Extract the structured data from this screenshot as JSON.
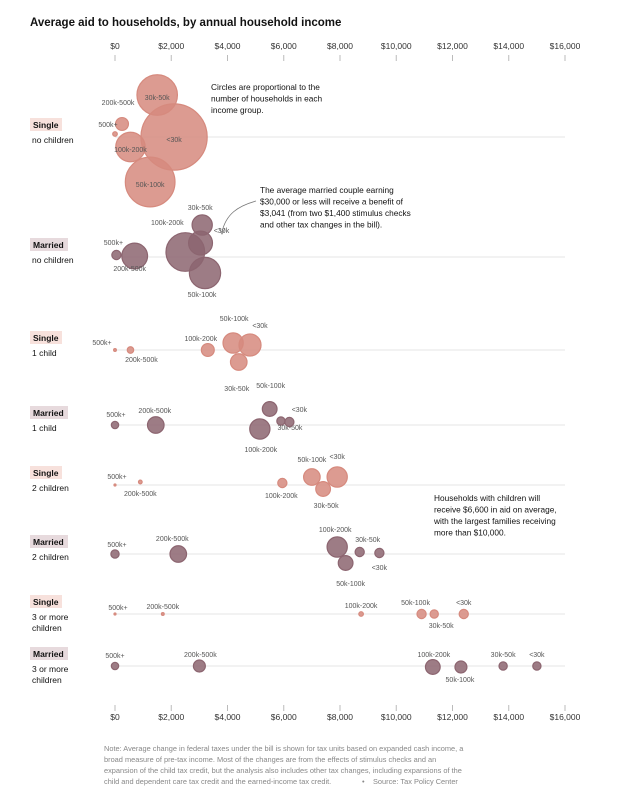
{
  "title": "Average aid to households, by annual household income",
  "x_ticks": [
    "$0",
    "$2,000",
    "$4,000",
    "$6,000",
    "$8,000",
    "$10,000",
    "$12,000",
    "$14,000",
    "$16,000"
  ],
  "annotations": [
    [
      "Circles are proportional to the",
      "number of households in each",
      "income group."
    ],
    [
      "The average married couple earning",
      "$30,000 or less will receive a benefit of",
      "$3,041 (from two $1,400 stimulus checks",
      "and other tax changes in the bill)."
    ],
    [
      "Households with children will",
      "receive $6,600 in aid on average,",
      "with the largest families receiving",
      "more than $10,000."
    ]
  ],
  "note": [
    "Note: Average change in federal taxes under the bill is shown for tax units based on expanded cash income, a",
    "broad measure of pre-tax income. Most of the changes are from the effects of stimulus checks and an",
    "expansion of the child tax credit, but the analysis also includes other tax changes, including expansions of the",
    "child and dependent care tax credit and the earned-income tax credit.",
    "Source: Tax Policy Center"
  ],
  "colors": {
    "single": "#d68a7e",
    "married": "#8c6570",
    "single_tag": "#f7e1dc",
    "married_tag": "#e7dadd"
  },
  "chart_data": {
    "type": "scatter",
    "title": "Average aid to households, by annual household income",
    "xlabel": "",
    "ylabel": "",
    "xlim": [
      0,
      16000
    ],
    "grid": false,
    "groups": [
      {
        "status": "Single",
        "sub": [
          "no children"
        ],
        "color": "single",
        "points": [
          {
            "label": "<30k",
            "x": 2100,
            "size": 36
          },
          {
            "label": "30k-50k",
            "x": 1500,
            "size": 22
          },
          {
            "label": "50k-100k",
            "x": 1250,
            "size": 27
          },
          {
            "label": "100k-200k",
            "x": 550,
            "size": 16
          },
          {
            "label": "200k-500k",
            "x": 250,
            "size": 7
          },
          {
            "label": "500k+",
            "x": 0,
            "size": 2.5
          }
        ]
      },
      {
        "status": "Married",
        "sub": [
          "no children"
        ],
        "color": "married",
        "points": [
          {
            "label": "<30k",
            "x": 3041,
            "size": 13
          },
          {
            "label": "30k-50k",
            "x": 3100,
            "size": 11
          },
          {
            "label": "50k-100k",
            "x": 3200,
            "size": 17
          },
          {
            "label": "100k-200k",
            "x": 2500,
            "size": 21
          },
          {
            "label": "200k-500k",
            "x": 700,
            "size": 14
          },
          {
            "label": "500k+",
            "x": 50,
            "size": 5
          }
        ]
      },
      {
        "status": "Single",
        "sub": [
          "1 child"
        ],
        "color": "single",
        "points": [
          {
            "label": "<30k",
            "x": 4800,
            "size": 12
          },
          {
            "label": "50k-100k",
            "x": 4200,
            "size": 11
          },
          {
            "label": "30k-50k",
            "x": 4400,
            "size": 9
          },
          {
            "label": "100k-200k",
            "x": 3300,
            "size": 7
          },
          {
            "label": "200k-500k",
            "x": 550,
            "size": 3.5
          },
          {
            "label": "500k+",
            "x": 0,
            "size": 1.5
          }
        ]
      },
      {
        "status": "Married",
        "sub": [
          "1 child"
        ],
        "color": "married",
        "points": [
          {
            "label": "50k-100k",
            "x": 5500,
            "size": 8
          },
          {
            "label": "100k-200k",
            "x": 5150,
            "size": 11
          },
          {
            "label": "30k-50k",
            "x": 5900,
            "size": 4.5
          },
          {
            "label": "<30k",
            "x": 6200,
            "size": 5
          },
          {
            "label": "200k-500k",
            "x": 1450,
            "size": 9
          },
          {
            "label": "500k+",
            "x": 0,
            "size": 4
          }
        ]
      },
      {
        "status": "Single",
        "sub": [
          "2 children"
        ],
        "color": "single",
        "points": [
          {
            "label": "<30k",
            "x": 7900,
            "size": 11
          },
          {
            "label": "50k-100k",
            "x": 7000,
            "size": 9
          },
          {
            "label": "30k-50k",
            "x": 7400,
            "size": 8
          },
          {
            "label": "100k-200k",
            "x": 5950,
            "size": 5
          },
          {
            "label": "200k-500k",
            "x": 900,
            "size": 2
          },
          {
            "label": "500k+",
            "x": 0,
            "size": 1
          }
        ]
      },
      {
        "status": "Married",
        "sub": [
          "2 children"
        ],
        "color": "married",
        "points": [
          {
            "label": "100k-200k",
            "x": 7900,
            "size": 11
          },
          {
            "label": "50k-100k",
            "x": 8200,
            "size": 8
          },
          {
            "label": "30k-50k",
            "x": 8700,
            "size": 5
          },
          {
            "label": "<30k",
            "x": 9400,
            "size": 5
          },
          {
            "label": "200k-500k",
            "x": 2250,
            "size": 9
          },
          {
            "label": "500k+",
            "x": 0,
            "size": 4.5
          }
        ]
      },
      {
        "status": "Single",
        "sub": [
          "3 or more",
          "children"
        ],
        "color": "single",
        "points": [
          {
            "label": "50k-100k",
            "x": 10900,
            "size": 5
          },
          {
            "label": "30k-50k",
            "x": 11350,
            "size": 4.5
          },
          {
            "label": "<30k",
            "x": 12400,
            "size": 5
          },
          {
            "label": "100k-200k",
            "x": 8750,
            "size": 2.5
          },
          {
            "label": "200k-500k",
            "x": 1700,
            "size": 1.5
          },
          {
            "label": "500k+",
            "x": 0,
            "size": 0.8
          }
        ]
      },
      {
        "status": "Married",
        "sub": [
          "3 or more",
          "children"
        ],
        "color": "married",
        "points": [
          {
            "label": "100k-200k",
            "x": 11300,
            "size": 8
          },
          {
            "label": "50k-100k",
            "x": 12300,
            "size": 6.5
          },
          {
            "label": "30k-50k",
            "x": 13800,
            "size": 4.5
          },
          {
            "label": "<30k",
            "x": 15000,
            "size": 4.5
          },
          {
            "label": "200k-500k",
            "x": 3000,
            "size": 6.5
          },
          {
            "label": "500k+",
            "x": 0,
            "size": 4
          }
        ]
      }
    ]
  }
}
